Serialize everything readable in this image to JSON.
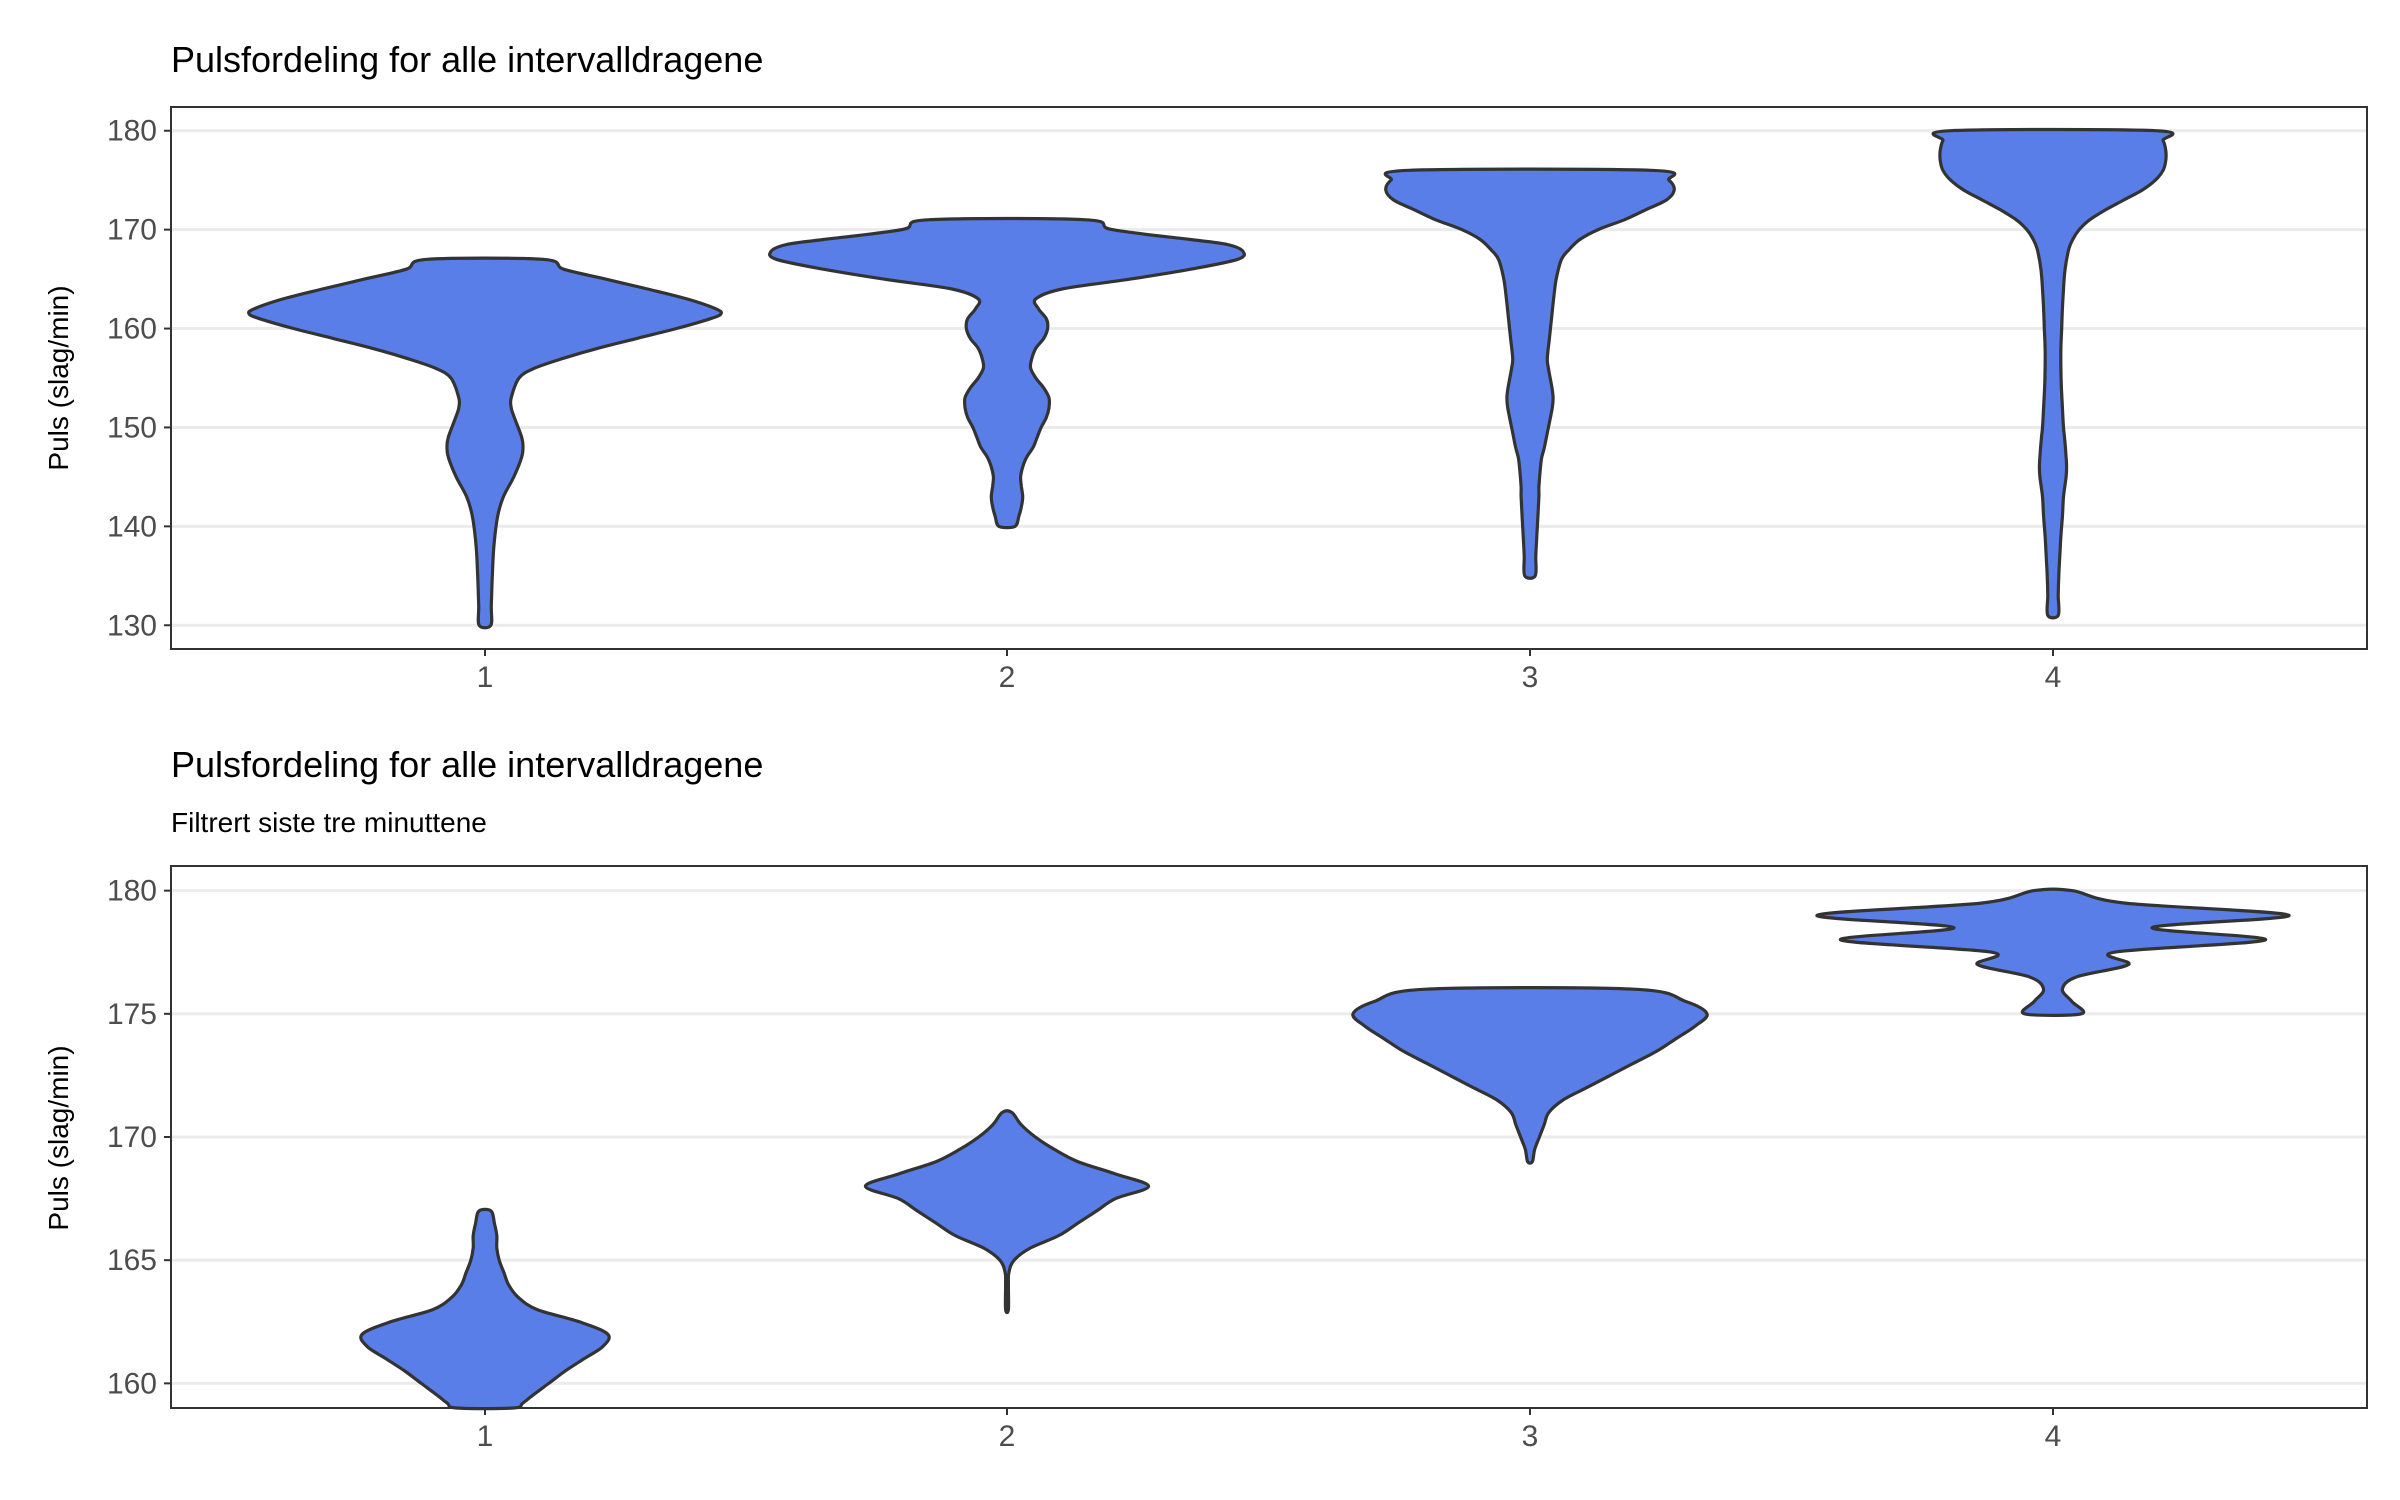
{
  "fill_color": "#5a7ee8",
  "chart_data": [
    {
      "type": "violin",
      "title": "Pulsfordeling for alle intervalldragene",
      "subtitle": "",
      "xlabel": "",
      "ylabel": "Puls (slag/min)",
      "categories": [
        "1",
        "2",
        "3",
        "4"
      ],
      "yticks": [
        130,
        140,
        150,
        160,
        170,
        180
      ],
      "ylim": [
        127.6,
        182.4
      ],
      "grid": true,
      "violins": [
        {
          "category": "1",
          "min": 130,
          "max": 167,
          "profile": [
            [
              130,
              0.022
            ],
            [
              132,
              0.024
            ],
            [
              135,
              0.028
            ],
            [
              138,
              0.034
            ],
            [
              141,
              0.048
            ],
            [
              143,
              0.07
            ],
            [
              145,
              0.11
            ],
            [
              147,
              0.14
            ],
            [
              148,
              0.145
            ],
            [
              149,
              0.14
            ],
            [
              151,
              0.112
            ],
            [
              152,
              0.1
            ],
            [
              153,
              0.1
            ],
            [
              155,
              0.13
            ],
            [
              156,
              0.19
            ],
            [
              157,
              0.3
            ],
            [
              158,
              0.43
            ],
            [
              159,
              0.58
            ],
            [
              160,
              0.73
            ],
            [
              161,
              0.86
            ],
            [
              161.5,
              0.9
            ],
            [
              162,
              0.88
            ],
            [
              163,
              0.77
            ],
            [
              164,
              0.62
            ],
            [
              165,
              0.46
            ],
            [
              166,
              0.3
            ],
            [
              167,
              0.22
            ]
          ]
        },
        {
          "category": "2",
          "min": 140,
          "max": 171,
          "profile": [
            [
              140,
              0.03
            ],
            [
              141,
              0.045
            ],
            [
              142,
              0.055
            ],
            [
              143,
              0.06
            ],
            [
              144,
              0.055
            ],
            [
              145,
              0.052
            ],
            [
              146,
              0.06
            ],
            [
              147,
              0.075
            ],
            [
              148,
              0.1
            ],
            [
              149,
              0.115
            ],
            [
              150,
              0.13
            ],
            [
              151,
              0.15
            ],
            [
              152,
              0.16
            ],
            [
              153,
              0.16
            ],
            [
              154,
              0.14
            ],
            [
              155,
              0.11
            ],
            [
              156,
              0.09
            ],
            [
              157,
              0.095
            ],
            [
              158,
              0.11
            ],
            [
              159,
              0.14
            ],
            [
              160,
              0.155
            ],
            [
              161,
              0.15
            ],
            [
              162,
              0.12
            ],
            [
              163,
              0.11
            ],
            [
              164,
              0.21
            ],
            [
              165,
              0.47
            ],
            [
              166,
              0.7
            ],
            [
              167,
              0.88
            ],
            [
              167.8,
              0.9
            ],
            [
              168.5,
              0.84
            ],
            [
              169,
              0.7
            ],
            [
              170,
              0.4
            ],
            [
              171,
              0.3
            ]
          ]
        },
        {
          "category": "3",
          "min": 135,
          "max": 176,
          "profile": [
            [
              135,
              0.02
            ],
            [
              137,
              0.022
            ],
            [
              139,
              0.026
            ],
            [
              141,
              0.03
            ],
            [
              143,
              0.034
            ],
            [
              144,
              0.034
            ],
            [
              146,
              0.04
            ],
            [
              147,
              0.045
            ],
            [
              148,
              0.055
            ],
            [
              150,
              0.07
            ],
            [
              152,
              0.085
            ],
            [
              153,
              0.088
            ],
            [
              154,
              0.084
            ],
            [
              156,
              0.07
            ],
            [
              157,
              0.066
            ],
            [
              159,
              0.074
            ],
            [
              161,
              0.082
            ],
            [
              163,
              0.09
            ],
            [
              165,
              0.1
            ],
            [
              167,
              0.12
            ],
            [
              168,
              0.15
            ],
            [
              169,
              0.19
            ],
            [
              170,
              0.26
            ],
            [
              171,
              0.36
            ],
            [
              172,
              0.44
            ],
            [
              173,
              0.52
            ],
            [
              174,
              0.55
            ],
            [
              175,
              0.53
            ],
            [
              176,
              0.46
            ]
          ]
        },
        {
          "category": "4",
          "min": 131,
          "max": 180,
          "profile": [
            [
              131,
              0.02
            ],
            [
              133,
              0.02
            ],
            [
              135,
              0.022
            ],
            [
              137,
              0.026
            ],
            [
              139,
              0.03
            ],
            [
              141,
              0.036
            ],
            [
              143,
              0.04
            ],
            [
              145,
              0.05
            ],
            [
              146,
              0.052
            ],
            [
              147,
              0.05
            ],
            [
              149,
              0.044
            ],
            [
              150,
              0.04
            ],
            [
              152,
              0.036
            ],
            [
              154,
              0.032
            ],
            [
              156,
              0.03
            ],
            [
              158,
              0.03
            ],
            [
              160,
              0.033
            ],
            [
              162,
              0.036
            ],
            [
              164,
              0.04
            ],
            [
              166,
              0.046
            ],
            [
              168,
              0.06
            ],
            [
              169,
              0.075
            ],
            [
              170,
              0.1
            ],
            [
              171,
              0.14
            ],
            [
              172,
              0.2
            ],
            [
              173,
              0.27
            ],
            [
              174,
              0.34
            ],
            [
              175,
              0.39
            ],
            [
              176,
              0.42
            ],
            [
              177,
              0.43
            ],
            [
              178,
              0.43
            ],
            [
              179,
              0.42
            ],
            [
              180,
              0.39
            ]
          ]
        }
      ]
    },
    {
      "type": "violin",
      "title": "Pulsfordeling for alle intervalldragene",
      "subtitle": "Filtrert siste tre minuttene",
      "xlabel": "",
      "ylabel": "Puls (slag/min)",
      "categories": [
        "1",
        "2",
        "3",
        "4"
      ],
      "yticks": [
        160,
        165,
        170,
        175,
        180
      ],
      "ylim": [
        159.0,
        181.0
      ],
      "grid": true,
      "violins": [
        {
          "category": "1",
          "min": 159,
          "max": 167,
          "profile": [
            [
              159,
              0.12
            ],
            [
              159.2,
              0.16
            ],
            [
              159.5,
              0.2
            ],
            [
              160,
              0.27
            ],
            [
              160.5,
              0.34
            ],
            [
              161,
              0.42
            ],
            [
              161.5,
              0.5
            ],
            [
              162,
              0.52
            ],
            [
              162.5,
              0.4
            ],
            [
              163,
              0.22
            ],
            [
              163.5,
              0.14
            ],
            [
              164,
              0.1
            ],
            [
              164.5,
              0.08
            ],
            [
              165,
              0.06
            ],
            [
              165.5,
              0.05
            ],
            [
              166,
              0.05
            ],
            [
              166.5,
              0.04
            ],
            [
              167,
              0.025
            ]
          ]
        },
        {
          "category": "2",
          "min": 163,
          "max": 171,
          "profile": [
            [
              163,
              0.006
            ],
            [
              164,
              0.006
            ],
            [
              164.5,
              0.008
            ],
            [
              165,
              0.03
            ],
            [
              165.5,
              0.1
            ],
            [
              166,
              0.22
            ],
            [
              166.5,
              0.3
            ],
            [
              167,
              0.38
            ],
            [
              167.5,
              0.46
            ],
            [
              168,
              0.6
            ],
            [
              168.5,
              0.46
            ],
            [
              169,
              0.3
            ],
            [
              169.5,
              0.2
            ],
            [
              170,
              0.12
            ],
            [
              170.5,
              0.06
            ],
            [
              171,
              0.02
            ]
          ]
        },
        {
          "category": "3",
          "min": 169,
          "max": 176,
          "profile": [
            [
              169,
              0.01
            ],
            [
              169.5,
              0.02
            ],
            [
              170,
              0.04
            ],
            [
              170.5,
              0.06
            ],
            [
              171,
              0.08
            ],
            [
              171.5,
              0.14
            ],
            [
              172,
              0.24
            ],
            [
              172.5,
              0.34
            ],
            [
              173,
              0.44
            ],
            [
              173.5,
              0.54
            ],
            [
              174,
              0.62
            ],
            [
              174.5,
              0.7
            ],
            [
              175,
              0.75
            ],
            [
              175.5,
              0.66
            ],
            [
              176,
              0.44
            ]
          ]
        },
        {
          "category": "4",
          "min": 175,
          "max": 180,
          "profile": [
            [
              175,
              0.12
            ],
            [
              175.5,
              0.08
            ],
            [
              176,
              0.04
            ],
            [
              176.5,
              0.1
            ],
            [
              177,
              0.32
            ],
            [
              177.5,
              0.26
            ],
            [
              178,
              0.9
            ],
            [
              178.5,
              0.42
            ],
            [
              179,
              1.0
            ],
            [
              179.5,
              0.3
            ],
            [
              180,
              0.08
            ]
          ]
        }
      ]
    }
  ]
}
